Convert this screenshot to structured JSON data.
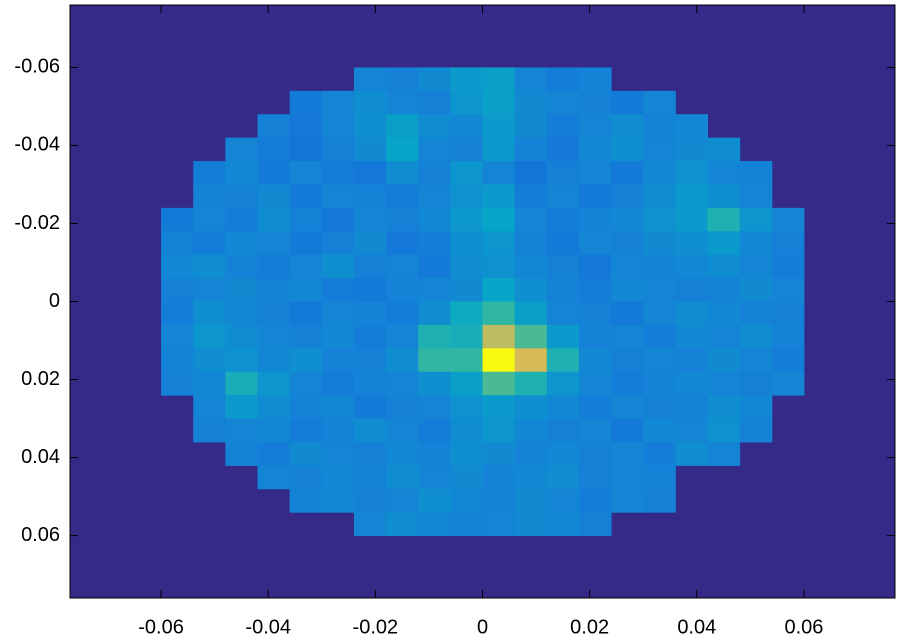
{
  "chart_data": {
    "type": "heatmap",
    "x": [
      -0.057,
      -0.051,
      -0.045,
      -0.039,
      -0.033,
      -0.027,
      -0.021,
      -0.015,
      -0.009,
      -0.003,
      0.003,
      0.009,
      0.015,
      0.021,
      0.027,
      0.033,
      0.039,
      0.045,
      0.051,
      0.057
    ],
    "y": [
      -0.057,
      -0.051,
      -0.045,
      -0.039,
      -0.033,
      -0.027,
      -0.021,
      -0.015,
      -0.009,
      -0.003,
      0.003,
      0.009,
      0.015,
      0.021,
      0.027,
      0.033,
      0.039,
      0.045,
      0.051,
      0.057
    ],
    "values": [
      [
        null,
        null,
        null,
        null,
        null,
        null,
        0.3,
        0.28,
        0.32,
        0.38,
        0.4,
        0.3,
        0.27,
        0.29,
        null,
        null,
        null,
        null,
        null,
        null
      ],
      [
        null,
        null,
        null,
        null,
        0.26,
        0.3,
        0.33,
        0.3,
        0.28,
        0.36,
        0.4,
        0.32,
        0.3,
        0.28,
        0.26,
        0.3,
        null,
        null,
        null,
        null
      ],
      [
        null,
        null,
        null,
        0.28,
        0.25,
        0.3,
        0.34,
        0.4,
        0.33,
        0.31,
        0.38,
        0.32,
        0.27,
        0.3,
        0.33,
        0.29,
        0.31,
        null,
        null,
        null
      ],
      [
        null,
        null,
        0.3,
        0.27,
        0.24,
        0.28,
        0.32,
        0.42,
        0.3,
        0.28,
        0.37,
        0.29,
        0.25,
        0.31,
        0.34,
        0.3,
        0.32,
        0.33,
        null,
        null
      ],
      [
        null,
        0.27,
        0.31,
        0.26,
        0.3,
        0.27,
        0.25,
        0.33,
        0.28,
        0.36,
        0.3,
        0.24,
        0.28,
        0.3,
        0.26,
        0.31,
        0.35,
        0.3,
        0.29,
        null
      ],
      [
        null,
        0.29,
        0.28,
        0.32,
        0.26,
        0.3,
        0.29,
        0.27,
        0.3,
        0.35,
        0.38,
        0.27,
        0.3,
        0.26,
        0.28,
        0.33,
        0.38,
        0.34,
        0.3,
        null
      ],
      [
        0.26,
        0.3,
        0.27,
        0.33,
        0.29,
        0.25,
        0.3,
        0.28,
        0.31,
        0.37,
        0.42,
        0.3,
        0.27,
        0.29,
        0.31,
        0.35,
        0.38,
        0.5,
        0.36,
        0.3
      ],
      [
        0.29,
        0.27,
        0.31,
        0.3,
        0.26,
        0.28,
        0.32,
        0.25,
        0.27,
        0.34,
        0.36,
        0.29,
        0.26,
        0.3,
        0.28,
        0.32,
        0.34,
        0.38,
        0.31,
        0.28
      ],
      [
        0.31,
        0.33,
        0.29,
        0.27,
        0.3,
        0.34,
        0.28,
        0.3,
        0.26,
        0.33,
        0.35,
        0.31,
        0.28,
        0.25,
        0.3,
        0.29,
        0.31,
        0.33,
        0.3,
        0.27
      ],
      [
        0.28,
        0.3,
        0.32,
        0.29,
        0.31,
        0.27,
        0.26,
        0.29,
        0.3,
        0.32,
        0.42,
        0.34,
        0.29,
        0.27,
        0.31,
        0.3,
        0.28,
        0.29,
        0.32,
        0.3
      ],
      [
        0.27,
        0.34,
        0.31,
        0.28,
        0.26,
        0.3,
        0.29,
        0.27,
        0.33,
        0.45,
        0.55,
        0.4,
        0.3,
        0.28,
        0.26,
        0.3,
        0.33,
        0.31,
        0.29,
        0.28
      ],
      [
        0.3,
        0.36,
        0.33,
        0.3,
        0.28,
        0.31,
        0.27,
        0.3,
        0.5,
        0.48,
        0.8,
        0.6,
        0.38,
        0.29,
        0.3,
        0.27,
        0.31,
        0.3,
        0.33,
        0.29
      ],
      [
        0.29,
        0.33,
        0.35,
        0.31,
        0.34,
        0.29,
        0.28,
        0.33,
        0.55,
        0.55,
        1.0,
        0.85,
        0.5,
        0.31,
        0.28,
        0.3,
        0.29,
        0.32,
        0.3,
        0.27
      ],
      [
        0.28,
        0.31,
        0.48,
        0.36,
        0.3,
        0.27,
        0.29,
        0.3,
        0.34,
        0.4,
        0.6,
        0.5,
        0.36,
        0.3,
        0.27,
        0.29,
        0.31,
        0.3,
        0.28,
        0.3
      ],
      [
        null,
        0.3,
        0.38,
        0.33,
        0.29,
        0.31,
        0.26,
        0.28,
        0.3,
        0.35,
        0.38,
        0.34,
        0.31,
        0.27,
        0.3,
        0.28,
        0.29,
        0.33,
        0.31,
        null
      ],
      [
        null,
        0.28,
        0.3,
        0.31,
        0.27,
        0.29,
        0.33,
        0.3,
        0.27,
        0.33,
        0.36,
        0.31,
        0.28,
        0.3,
        0.26,
        0.31,
        0.3,
        0.35,
        0.29,
        null
      ],
      [
        null,
        null,
        0.29,
        0.27,
        0.32,
        0.3,
        0.28,
        0.31,
        0.29,
        0.34,
        0.32,
        0.29,
        0.31,
        0.28,
        0.3,
        0.27,
        0.33,
        0.3,
        null,
        null
      ],
      [
        null,
        null,
        null,
        0.3,
        0.28,
        0.31,
        0.29,
        0.33,
        0.3,
        0.32,
        0.29,
        0.31,
        0.33,
        0.28,
        0.3,
        0.29,
        null,
        null,
        null,
        null
      ],
      [
        null,
        null,
        null,
        null,
        0.29,
        0.31,
        0.28,
        0.3,
        0.34,
        0.31,
        0.29,
        0.32,
        0.3,
        0.27,
        0.3,
        0.28,
        null,
        null,
        null,
        null
      ],
      [
        null,
        null,
        null,
        null,
        null,
        null,
        0.3,
        0.33,
        0.31,
        0.29,
        0.3,
        0.32,
        0.31,
        0.28,
        null,
        null,
        null,
        null,
        null,
        null
      ]
    ],
    "xlim": [
      -0.077,
      0.077
    ],
    "ylim": [
      -0.076,
      0.076
    ],
    "y_reversed": true,
    "xticks": [
      -0.06,
      -0.04,
      -0.02,
      0,
      0.02,
      0.04,
      0.06
    ],
    "yticks": [
      -0.06,
      -0.04,
      -0.02,
      0,
      0.02,
      0.04,
      0.06
    ],
    "clim": [
      0,
      1
    ],
    "colormap": [
      "#352a87",
      "#0f5cdd",
      "#1481d6",
      "#06a7c6",
      "#38b99e",
      "#92bf73",
      "#d9ba56",
      "#f9fb0e"
    ]
  }
}
